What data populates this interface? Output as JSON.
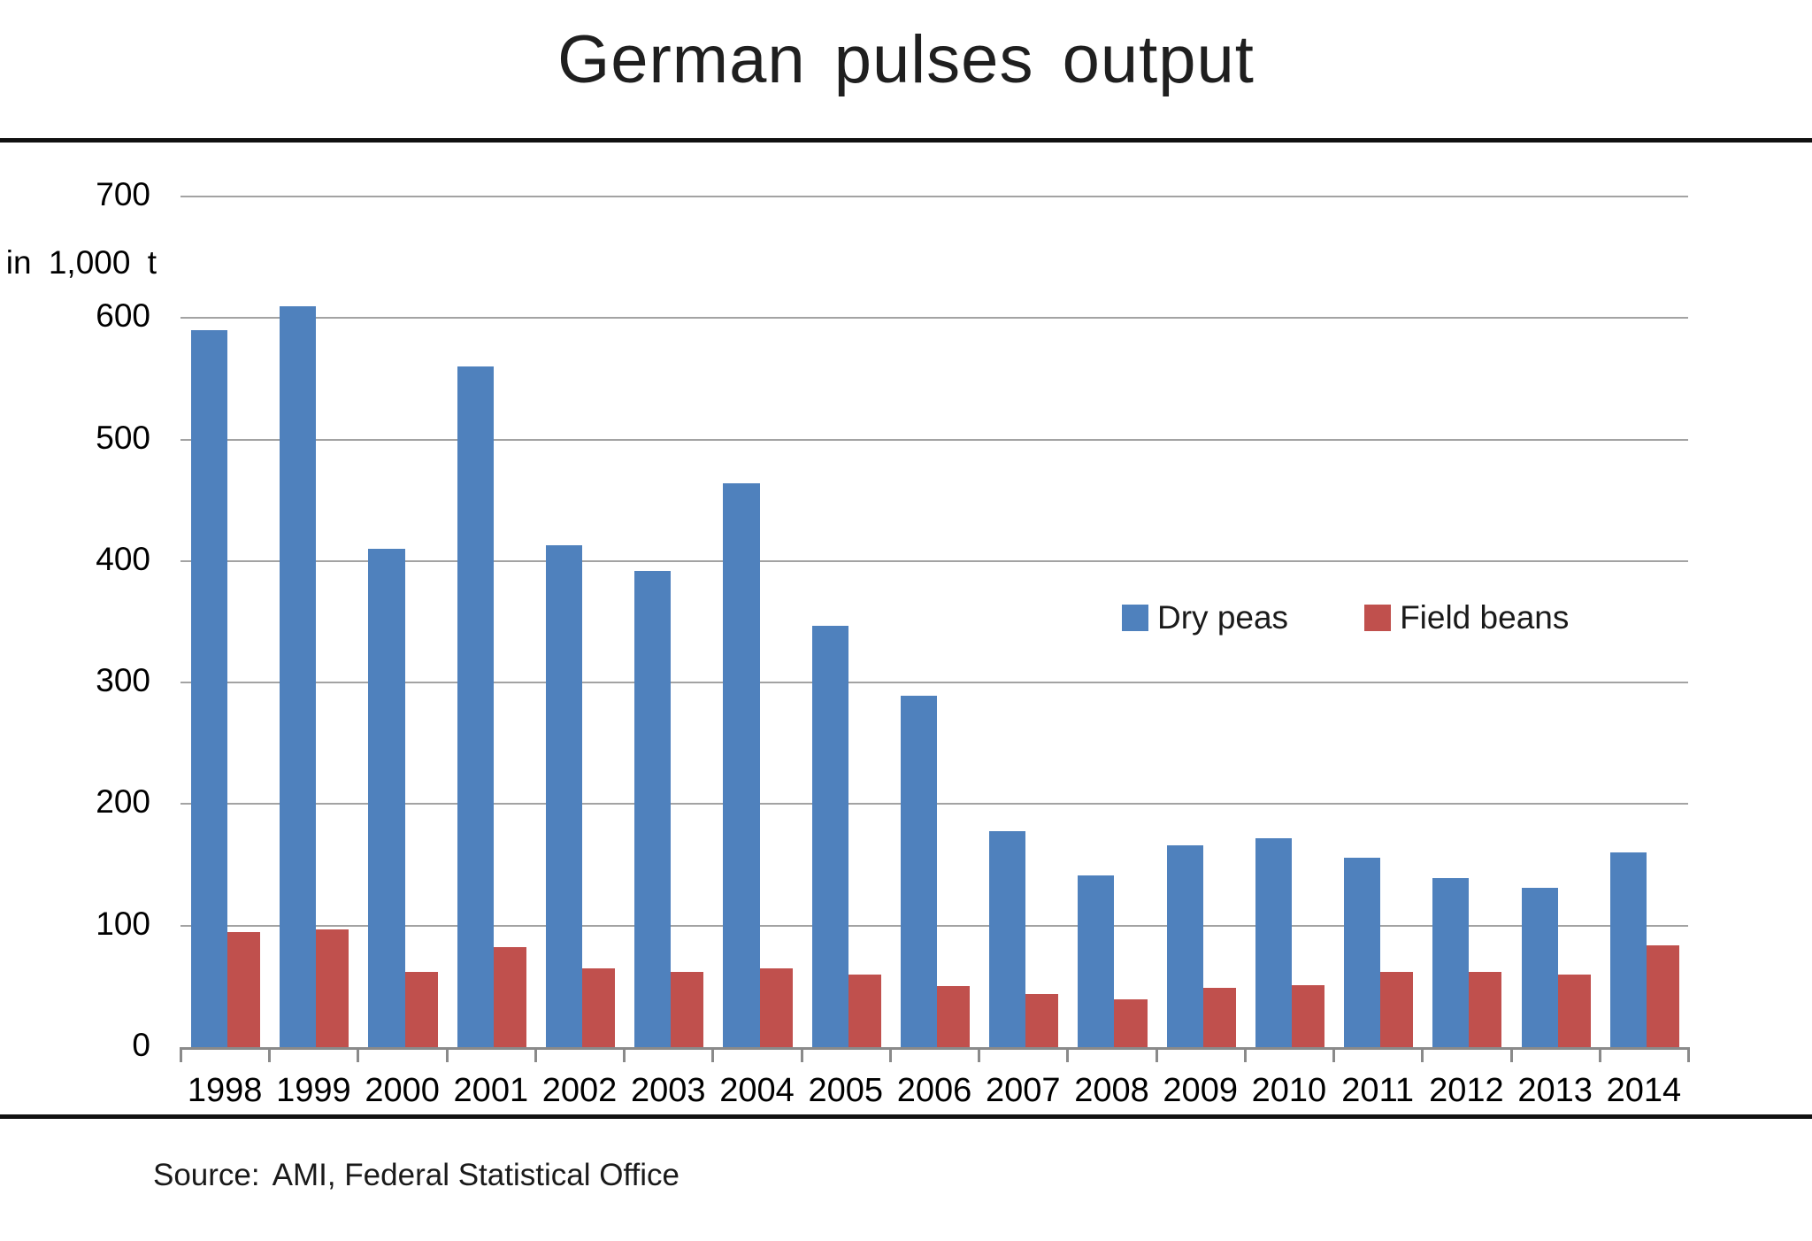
{
  "page": {
    "title": "German pulses output",
    "source_label": "Source:",
    "source_text": "AMI, Federal Statistical Office"
  },
  "chart_data": {
    "type": "bar",
    "title": "German pulses output",
    "xlabel": "",
    "ylabel": "in 1,000 t",
    "ylim": [
      0,
      700
    ],
    "ytick_step": 100,
    "grid": true,
    "legend_position": "center-right",
    "categories": [
      "1998",
      "1999",
      "2000",
      "2001",
      "2002",
      "2003",
      "2004",
      "2005",
      "2006",
      "2007",
      "2008",
      "2009",
      "2010",
      "2011",
      "2012",
      "2013",
      "2014"
    ],
    "series": [
      {
        "name": "Dry peas",
        "color": "#4F81BD",
        "values": [
          590,
          610,
          410,
          560,
          413,
          392,
          464,
          347,
          289,
          178,
          141,
          166,
          172,
          156,
          139,
          131,
          160
        ]
      },
      {
        "name": "Field beans",
        "color": "#C0504D",
        "values": [
          95,
          97,
          62,
          82,
          65,
          62,
          65,
          60,
          50,
          44,
          39,
          49,
          51,
          62,
          62,
          60,
          84
        ]
      }
    ],
    "axis_colors": {
      "gridline": "#a3a3a3",
      "axis_line": "#8a8a8a"
    }
  }
}
